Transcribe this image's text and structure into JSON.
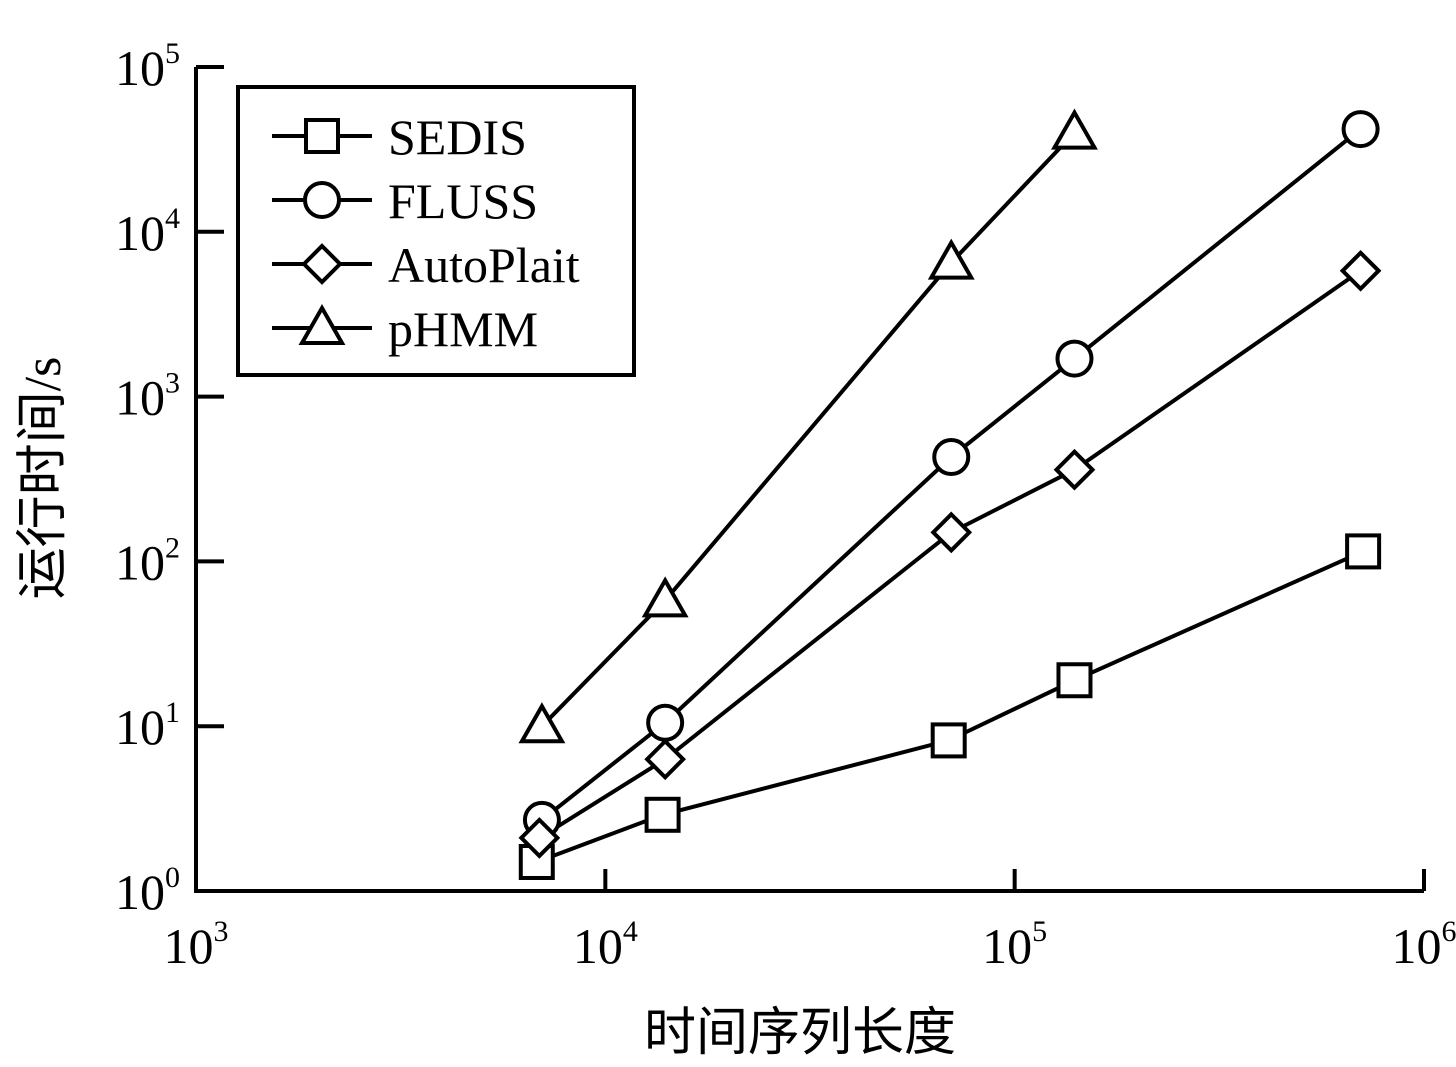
{
  "chart_data": {
    "type": "line",
    "title": "",
    "xlabel": "时间序列长度",
    "ylabel": "运行时间/s",
    "xscale": "log",
    "yscale": "log",
    "xlim": [
      1000,
      1000000
    ],
    "ylim": [
      1,
      100000
    ],
    "grid": false,
    "legend_position": "top-left",
    "x_ticks": [
      {
        "base": "10",
        "exp": "3",
        "value": 1000
      },
      {
        "base": "10",
        "exp": "4",
        "value": 10000
      },
      {
        "base": "10",
        "exp": "5",
        "value": 100000
      },
      {
        "base": "10",
        "exp": "6",
        "value": 1000000
      }
    ],
    "y_ticks": [
      {
        "base": "10",
        "exp": "0",
        "value": 1
      },
      {
        "base": "10",
        "exp": "1",
        "value": 10
      },
      {
        "base": "10",
        "exp": "2",
        "value": 100
      },
      {
        "base": "10",
        "exp": "3",
        "value": 1000
      },
      {
        "base": "10",
        "exp": "4",
        "value": 10000
      },
      {
        "base": "10",
        "exp": "5",
        "value": 100000
      }
    ],
    "series": [
      {
        "name": "SEDIS",
        "marker": "square",
        "x": [
          6800,
          13800,
          69000,
          140000,
          710000
        ],
        "y": [
          1.5,
          2.9,
          8.2,
          19,
          115
        ]
      },
      {
        "name": "FLUSS",
        "marker": "circle",
        "x": [
          7000,
          14000,
          70000,
          140000,
          700000
        ],
        "y": [
          2.7,
          10.5,
          430,
          1700,
          42000
        ]
      },
      {
        "name": "AutoPlait",
        "marker": "diamond",
        "x": [
          6900,
          14000,
          70000,
          140000,
          700000
        ],
        "y": [
          2.1,
          6.3,
          150,
          360,
          5800
        ]
      },
      {
        "name": "pHMM",
        "marker": "triangle",
        "x": [
          7000,
          14000,
          70000,
          140000
        ],
        "y": [
          10,
          58,
          6500,
          40000
        ]
      }
    ]
  }
}
